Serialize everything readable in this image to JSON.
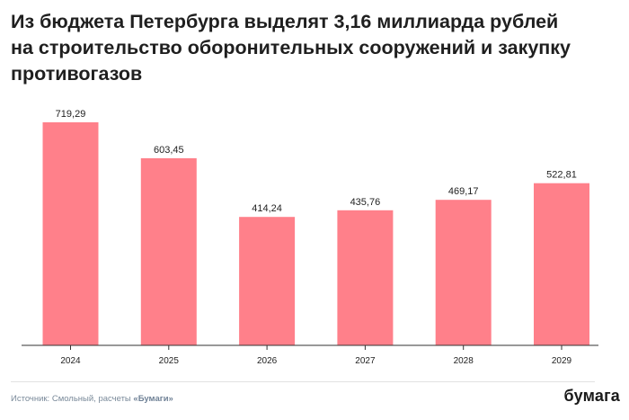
{
  "title": "Из бюджета Петербурга выделят 3,16 миллиарда рублей на строительство оборонительных сооружений и закупку противогазов",
  "source": {
    "prefix": "Источник: Смольный, расчеты ",
    "brand": "«Бумаги»"
  },
  "logo": "бумага",
  "colors": {
    "bar": "#ff808a",
    "axis": "#333333",
    "text": "#222222"
  },
  "chart_data": {
    "type": "bar",
    "title": "Из бюджета Петербурга выделят 3,16 миллиарда рублей на строительство оборонительных сооружений и закупку противогазов",
    "xlabel": "",
    "ylabel": "",
    "categories": [
      "2024",
      "2025",
      "2026",
      "2027",
      "2028",
      "2029"
    ],
    "values": [
      719.29,
      603.45,
      414.24,
      435.76,
      469.17,
      522.81
    ],
    "value_labels": [
      "719,29",
      "603,45",
      "414,24",
      "435,76",
      "469,17",
      "522,81"
    ],
    "ylim": [
      0,
      719.29
    ],
    "grid": false,
    "legend": "none"
  }
}
